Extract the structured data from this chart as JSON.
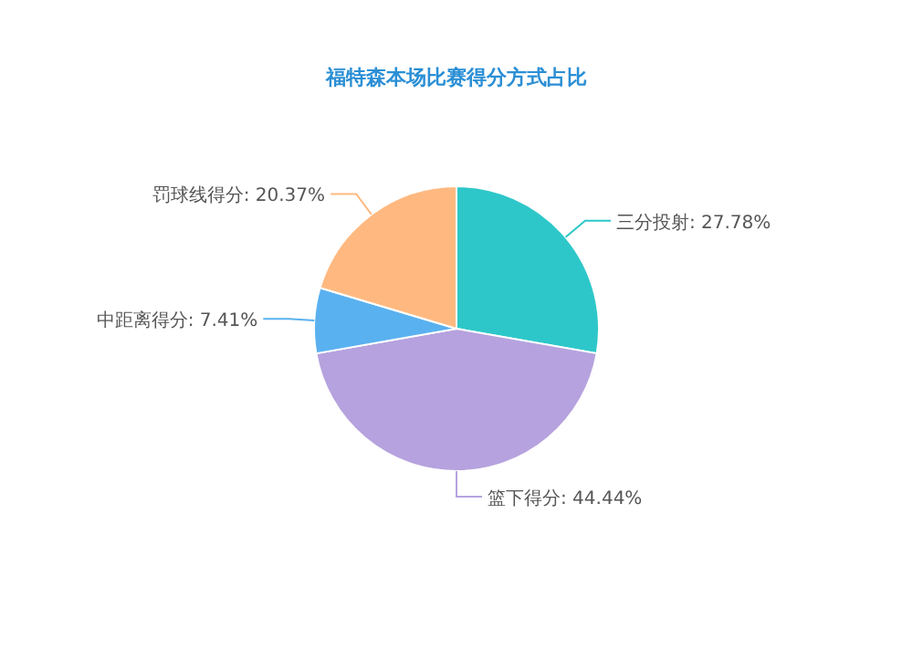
{
  "chart_data": {
    "type": "pie",
    "title": "福特森本场比赛得分方式占比",
    "categories": [
      "三分投射",
      "篮下得分",
      "中距离得分",
      "罚球线得分"
    ],
    "values": [
      27.78,
      44.44,
      7.41,
      20.37
    ],
    "value_labels": [
      ": 27.78%",
      ": 44.44%",
      ": 7.41%",
      ": 20.37%"
    ],
    "colors": [
      "#2ec7c9",
      "#b6a2de",
      "#5ab1ef",
      "#ffb980"
    ],
    "legend": false
  }
}
